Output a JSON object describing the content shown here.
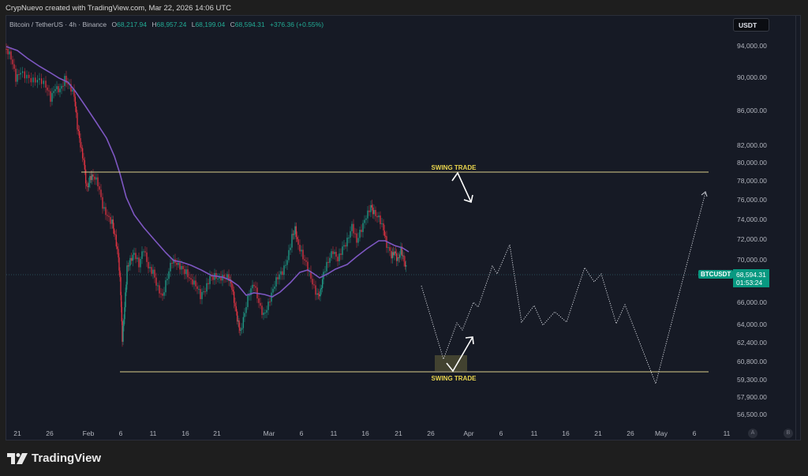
{
  "credit": "CrypNuevo created with TradingView.com, Mar 22, 2026 14:06 UTC",
  "legend": {
    "symbol": "Bitcoin / TetherUS · 4h · Binance",
    "open_label": "O",
    "open": "68,217.94",
    "high_label": "H",
    "high": "68,957.24",
    "low_label": "L",
    "low": "68,199.04",
    "close_label": "C",
    "close": "68,594.31",
    "change": "+376.36 (+0.55%)"
  },
  "price_axis": {
    "currency": "USDT",
    "ticks": [
      "94,000.00",
      "90,000.00",
      "86,000.00",
      "82,000.00",
      "80,000.00",
      "78,000.00",
      "76,000.00",
      "74,000.00",
      "72,000.00",
      "70,000.00",
      "66,000.00",
      "64,000.00",
      "62,400.00",
      "60,800.00",
      "59,300.00",
      "57,900.00",
      "56,500.00"
    ],
    "current_symbol": "BTCUSDT",
    "current_price": "68,594.31",
    "countdown": "01:53:24"
  },
  "time_axis": {
    "ticks": [
      "21",
      "26",
      "Feb",
      "6",
      "11",
      "16",
      "21",
      "Mar",
      "6",
      "11",
      "16",
      "21",
      "26",
      "Apr",
      "6",
      "11",
      "16",
      "21",
      "26",
      "May",
      "6",
      "11"
    ],
    "auto_button": "A",
    "log_button": "B"
  },
  "annotations": {
    "upper_label": "SWING TRADE",
    "lower_label": "SWING TRADE"
  },
  "brand": "TradingView",
  "colors": {
    "background": "#161a25",
    "up": "#22ab94",
    "down": "#f23645",
    "ma": "#7e57c2",
    "level": "#e8d44d",
    "projection": "#d1d4dc"
  },
  "chart_data": {
    "type": "line",
    "title": "Bitcoin / TetherUS · 4h · Binance",
    "xlabel": "",
    "ylabel": "USDT",
    "ylim": [
      55800,
      96000
    ],
    "x_range": [
      "Jan 18, 2026",
      "May 15, 2026"
    ],
    "grid": false,
    "series": [
      {
        "name": "BTCUSDT price (approx. 4h closes)",
        "x": [
          "Jan 18",
          "Jan 21",
          "Jan 24",
          "Jan 27",
          "Jan 30",
          "Feb 1",
          "Feb 3",
          "Feb 5",
          "Feb 6",
          "Feb 8",
          "Feb 11",
          "Feb 14",
          "Feb 17",
          "Feb 20",
          "Feb 23",
          "Feb 25",
          "Feb 28",
          "Mar 2",
          "Mar 4",
          "Mar 6",
          "Mar 9",
          "Mar 12",
          "Mar 15",
          "Mar 17",
          "Mar 19",
          "Mar 22"
        ],
        "values": [
          93500,
          89500,
          90000,
          88500,
          89500,
          84000,
          79000,
          73000,
          63000,
          70000,
          69500,
          67000,
          69500,
          68000,
          66000,
          64500,
          67000,
          68500,
          73500,
          70000,
          66500,
          70500,
          73000,
          75500,
          71000,
          68594
        ]
      },
      {
        "name": "Moving average (purple)",
        "x": [
          "Jan 18",
          "Jan 24",
          "Jan 30",
          "Feb 3",
          "Feb 6",
          "Feb 10",
          "Feb 15",
          "Feb 20",
          "Feb 25",
          "Mar 1",
          "Mar 5",
          "Mar 10",
          "Mar 15",
          "Mar 18",
          "Mar 22"
        ],
        "values": [
          93500,
          91000,
          89000,
          82500,
          75500,
          71000,
          69800,
          68600,
          66800,
          67300,
          69200,
          69300,
          70300,
          72300,
          71000
        ]
      },
      {
        "name": "Projected path (dotted)",
        "x": [
          "Mar 22",
          "Mar 28",
          "Mar 31",
          "Apr 2",
          "Apr 4",
          "Apr 7",
          "Apr 9",
          "Apr 12",
          "Apr 14",
          "Apr 16",
          "Apr 18",
          "Apr 20",
          "Apr 22",
          "Apr 24",
          "Apr 26",
          "Apr 29",
          "May 1",
          "May 9"
        ],
        "values": [
          67500,
          61100,
          64000,
          66000,
          69500,
          71500,
          64500,
          66000,
          64000,
          65000,
          69500,
          68500,
          64000,
          66000,
          59300,
          59300,
          66000,
          77000
        ]
      }
    ],
    "levels": [
      {
        "label": "SWING TRADE",
        "price": 79000
      },
      {
        "label": "SWING TRADE",
        "price": 60100
      }
    ],
    "current_price": 68594.31
  }
}
